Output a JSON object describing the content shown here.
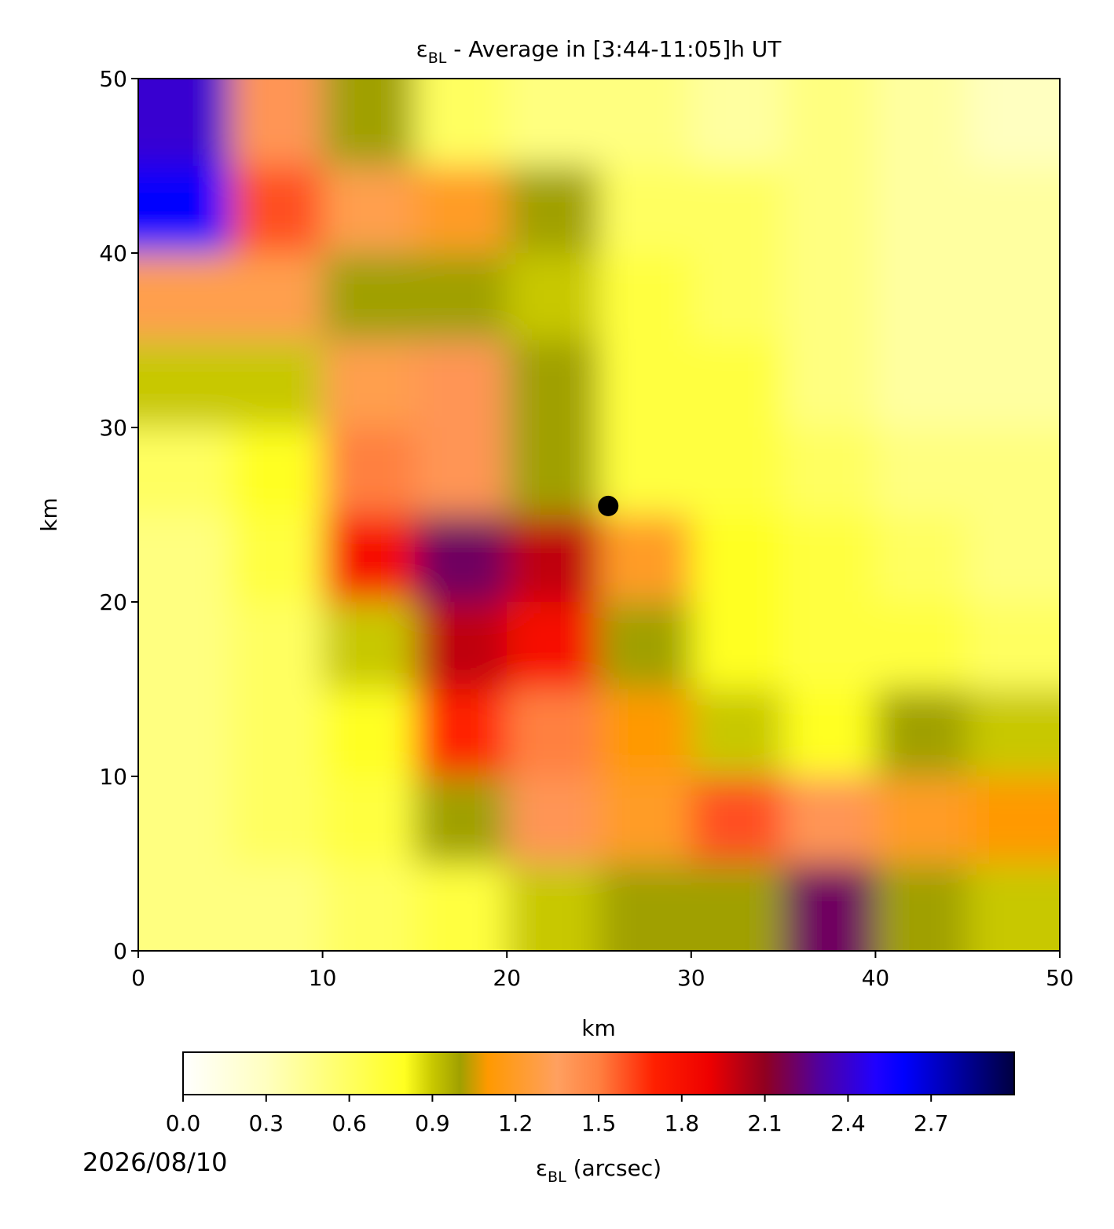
{
  "chart_data": {
    "type": "heatmap",
    "title": {
      "symbol": "ε",
      "subscript": "BL",
      "text": " - Average in [3:44-11:05]h UT"
    },
    "xlabel": "km",
    "ylabel": "km",
    "xlim": [
      0,
      50
    ],
    "ylim": [
      0,
      50
    ],
    "xticks": [
      0,
      10,
      20,
      30,
      40,
      50
    ],
    "yticks": [
      0,
      10,
      20,
      30,
      40,
      50
    ],
    "x": [
      0,
      5,
      10,
      15,
      20,
      25,
      30,
      35,
      40,
      45,
      50
    ],
    "y": [
      50,
      45,
      40,
      35,
      30,
      25,
      20,
      15,
      10,
      5,
      0
    ],
    "z": [
      [
        2.4,
        1.4,
        1.0,
        0.6,
        0.5,
        0.5,
        0.4,
        0.5,
        0.4,
        0.3
      ],
      [
        2.6,
        1.6,
        1.3,
        1.2,
        1.0,
        0.6,
        0.6,
        0.5,
        0.4,
        0.4
      ],
      [
        1.3,
        1.3,
        1.0,
        1.0,
        0.9,
        0.7,
        0.6,
        0.5,
        0.4,
        0.4
      ],
      [
        0.9,
        0.9,
        1.3,
        1.4,
        1.0,
        0.7,
        0.7,
        0.5,
        0.4,
        0.4
      ],
      [
        0.6,
        0.8,
        1.5,
        1.4,
        1.0,
        0.7,
        0.7,
        0.6,
        0.5,
        0.5
      ],
      [
        0.5,
        0.7,
        1.8,
        2.2,
        2.0,
        1.2,
        0.8,
        0.7,
        0.6,
        0.5
      ],
      [
        0.5,
        0.6,
        0.9,
        2.0,
        1.8,
        1.0,
        0.8,
        0.7,
        0.7,
        0.6
      ],
      [
        0.5,
        0.6,
        0.8,
        1.7,
        1.5,
        1.1,
        0.9,
        0.8,
        1.0,
        0.9
      ],
      [
        0.5,
        0.6,
        0.7,
        1.0,
        1.4,
        1.2,
        1.6,
        1.4,
        1.2,
        1.1
      ],
      [
        0.5,
        0.5,
        0.6,
        0.7,
        0.9,
        1.0,
        1.0,
        2.2,
        1.0,
        0.9
      ]
    ],
    "marker": {
      "x": 25.5,
      "y": 25.5,
      "color": "#000000"
    },
    "colorbar": {
      "label": {
        "symbol": "ε",
        "subscript": "BL",
        "text": " (arcsec)"
      },
      "lim": [
        0,
        3.0
      ],
      "ticks": [
        {
          "value": 0,
          "label": "0.0"
        },
        0.3,
        0.6,
        0.9,
        1.2,
        1.5,
        1.8,
        2.1,
        2.4,
        2.7
      ],
      "colorscale": [
        [
          0,
          "#ffffff"
        ],
        [
          0.3,
          "#ffffc0"
        ],
        [
          0.6,
          "#ffff60"
        ],
        [
          0.8,
          "#ffff20"
        ],
        [
          0.9,
          "#c8c800"
        ],
        [
          1.0,
          "#a0a000"
        ],
        [
          1.1,
          "#ff9900"
        ],
        [
          1.35,
          "#ffa060"
        ],
        [
          1.5,
          "#ff8040"
        ],
        [
          1.7,
          "#ff2000"
        ],
        [
          1.9,
          "#ee0000"
        ],
        [
          2.1,
          "#900020"
        ],
        [
          2.3,
          "#5000a0"
        ],
        [
          2.5,
          "#2000ff"
        ],
        [
          2.6,
          "#0000ff"
        ],
        [
          3.0,
          "#000040"
        ]
      ]
    },
    "date": "2026/08/10"
  }
}
